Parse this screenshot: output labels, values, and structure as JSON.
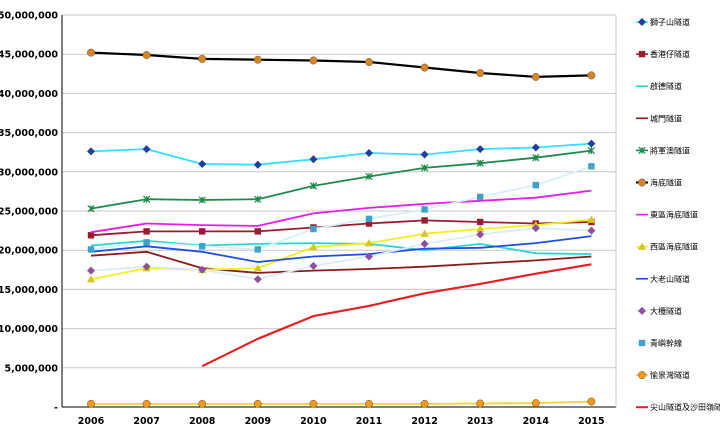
{
  "chart_data": {
    "type": "line",
    "title": "",
    "xlabel": "",
    "ylabel": "",
    "x": [
      "2006",
      "2007",
      "2008",
      "2009",
      "2010",
      "2011",
      "2012",
      "2013",
      "2014",
      "2015"
    ],
    "ylim": [
      0,
      50000000
    ],
    "yticks": [
      0,
      5000000,
      10000000,
      15000000,
      20000000,
      25000000,
      30000000,
      35000000,
      40000000,
      45000000,
      50000000
    ],
    "ytick_labels": [
      "-",
      "5,000,000",
      "10,000,000",
      "15,000,000",
      "20,000,000",
      "25,000,000",
      "30,000,000",
      "35,000,000",
      "40,000,000",
      "45,000,000",
      "50,000,000"
    ],
    "grid": "horizontal",
    "legend_position": "right",
    "series": [
      {
        "name": "獅子山隧道",
        "color": "#33e0ff",
        "marker": "diamond",
        "marker_color": "#1f3f9f",
        "values": [
          32600000,
          32900000,
          31000000,
          30900000,
          31600000,
          32400000,
          32200000,
          32900000,
          33100000,
          33600000
        ]
      },
      {
        "name": "香港仔隧道",
        "color": "#9b1b30",
        "marker": "square",
        "marker_color": "#9b1b30",
        "values": [
          21900000,
          22400000,
          22400000,
          22400000,
          22900000,
          23400000,
          23800000,
          23600000,
          23400000,
          23600000
        ]
      },
      {
        "name": "啟德隧道",
        "color": "#2bd4d4",
        "marker": "none",
        "marker_color": "#2bd4d4",
        "values": [
          20600000,
          21200000,
          20600000,
          20800000,
          20900000,
          20800000,
          20000000,
          20800000,
          19600000,
          19500000
        ]
      },
      {
        "name": "城門隧道",
        "color": "#8b1c1c",
        "marker": "none",
        "marker_color": "#8b1c1c",
        "values": [
          19300000,
          19800000,
          17700000,
          17100000,
          17400000,
          17600000,
          17900000,
          18300000,
          18700000,
          19200000
        ]
      },
      {
        "name": "將軍澳隧道",
        "color": "#1f8a4c",
        "marker": "star",
        "marker_color": "#1f8a4c",
        "values": [
          25300000,
          26500000,
          26400000,
          26500000,
          28200000,
          29400000,
          30500000,
          31100000,
          31800000,
          32700000
        ]
      },
      {
        "name": "海底隧道",
        "color": "#000000",
        "marker": "circle",
        "marker_color": "#d4842a",
        "values": [
          45200000,
          44900000,
          44400000,
          44300000,
          44200000,
          44000000,
          43300000,
          42600000,
          42100000,
          42300000
        ]
      },
      {
        "name": "東區海底隧道",
        "color": "#e61ce6",
        "marker": "none",
        "marker_color": "#e61ce6",
        "values": [
          22300000,
          23400000,
          23200000,
          23100000,
          24700000,
          25400000,
          25900000,
          26300000,
          26700000,
          27600000
        ]
      },
      {
        "name": "西區海底隧道",
        "color": "#f5ee1e",
        "marker": "triangle",
        "marker_color": "#d4c81e",
        "values": [
          16300000,
          17700000,
          17500000,
          17700000,
          20400000,
          20900000,
          22100000,
          22700000,
          23200000,
          23900000
        ]
      },
      {
        "name": "大老山隧道",
        "color": "#1f4fe0",
        "marker": "none",
        "marker_color": "#1f4fe0",
        "values": [
          19800000,
          20500000,
          19800000,
          18500000,
          19200000,
          19500000,
          20200000,
          20300000,
          20900000,
          21800000
        ]
      },
      {
        "name": "大欖隧道",
        "color": "#d9ecf5",
        "marker": "diamond",
        "marker_color": "#8f4fa0",
        "values": [
          17400000,
          17900000,
          17500000,
          16300000,
          18000000,
          19200000,
          20800000,
          22000000,
          22800000,
          22500000
        ]
      },
      {
        "name": "青嶼幹線",
        "color": "#d6f0f5",
        "marker": "square",
        "marker_color": "#3fa2c9",
        "values": [
          20100000,
          21000000,
          20500000,
          20100000,
          22700000,
          24000000,
          25200000,
          26800000,
          28300000,
          30700000
        ]
      },
      {
        "name": "愉景灣隧道",
        "color": "#f2d23c",
        "marker": "circle",
        "marker_color": "#f29a1e",
        "values": [
          400000,
          400000,
          400000,
          400000,
          400000,
          400000,
          400000,
          450000,
          500000,
          700000
        ]
      },
      {
        "name": "尖山隧道及沙田嶺隧道",
        "color": "#e62020",
        "marker": "none",
        "marker_color": "#e62020",
        "values": [
          null,
          null,
          5200000,
          8700000,
          11600000,
          12900000,
          14500000,
          15700000,
          17000000,
          18200000
        ]
      }
    ]
  }
}
